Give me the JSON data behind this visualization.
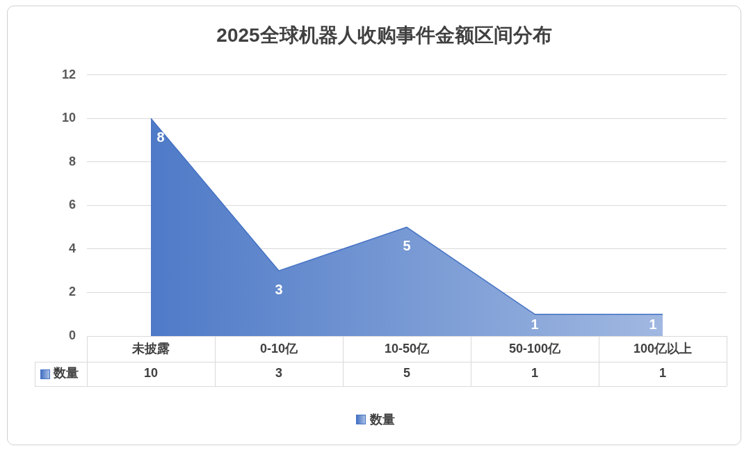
{
  "chart_data": {
    "type": "area",
    "title": "2025全球机器人收购事件金额区间分布",
    "categories": [
      "未披露",
      "0-10亿",
      "10-50亿",
      "50-100亿",
      "100亿以上"
    ],
    "series": [
      {
        "name": "数量",
        "color": "#4472c4",
        "values": [
          10,
          3,
          5,
          1,
          1
        ]
      }
    ],
    "annotations": [
      {
        "text": "8",
        "x": "未披露",
        "y": 10
      },
      {
        "text": "3",
        "x": "0-10亿",
        "y": 3
      },
      {
        "text": "5",
        "x": "10-50亿",
        "y": 5
      },
      {
        "text": "1",
        "x": "50-100亿",
        "y": 1
      },
      {
        "text": "1",
        "x": "100亿以上",
        "y": 1
      }
    ],
    "ylim": [
      0,
      12
    ],
    "yticks": [
      0,
      2,
      4,
      6,
      8,
      10,
      12
    ],
    "grid": "y",
    "legend": "bottom",
    "data_labels": true,
    "marker": "none"
  }
}
